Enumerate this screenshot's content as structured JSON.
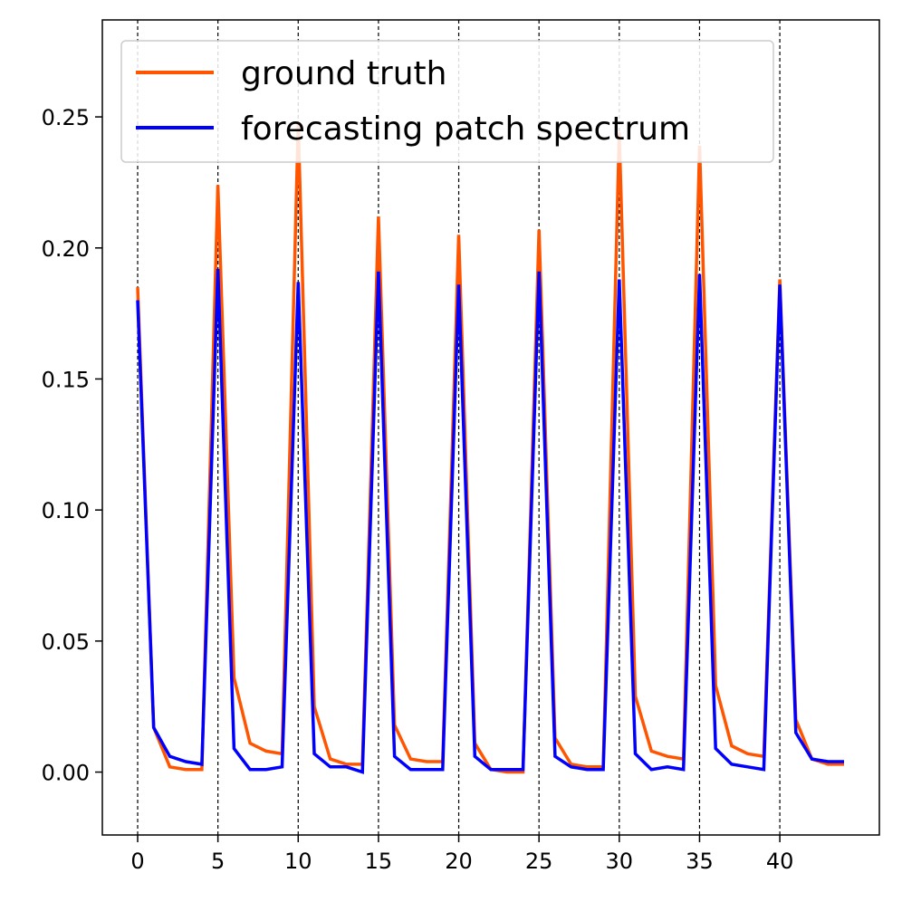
{
  "chart_data": {
    "type": "line",
    "title": "",
    "xlabel": "",
    "ylabel": "",
    "xlim": [
      -2.2,
      46.2
    ],
    "ylim": [
      -0.024,
      0.287
    ],
    "x_ticks": [
      0,
      5,
      10,
      15,
      20,
      25,
      30,
      35,
      40
    ],
    "x_tick_labels": [
      "0",
      "5",
      "10",
      "15",
      "20",
      "25",
      "30",
      "35",
      "40"
    ],
    "y_ticks": [
      0.0,
      0.05,
      0.1,
      0.15,
      0.2,
      0.25
    ],
    "y_tick_labels": [
      "0.00",
      "0.05",
      "0.10",
      "0.15",
      "0.20",
      "0.25"
    ],
    "vlines": [
      0,
      5,
      10,
      15,
      20,
      25,
      30,
      35,
      40
    ],
    "grid": false,
    "legend_position": "top-left",
    "x": [
      0,
      1,
      2,
      3,
      4,
      5,
      6,
      7,
      8,
      9,
      10,
      11,
      12,
      13,
      14,
      15,
      16,
      17,
      18,
      19,
      20,
      21,
      22,
      23,
      24,
      25,
      26,
      27,
      28,
      29,
      30,
      31,
      32,
      33,
      34,
      35,
      36,
      37,
      38,
      39,
      40,
      41,
      42,
      43,
      44
    ],
    "series": [
      {
        "name": "ground truth",
        "color": "#ff5500",
        "values": [
          0.185,
          0.017,
          0.002,
          0.001,
          0.001,
          0.224,
          0.036,
          0.011,
          0.008,
          0.007,
          0.248,
          0.025,
          0.005,
          0.003,
          0.003,
          0.212,
          0.018,
          0.005,
          0.004,
          0.004,
          0.205,
          0.011,
          0.001,
          0.0,
          0.0,
          0.207,
          0.013,
          0.003,
          0.002,
          0.002,
          0.244,
          0.029,
          0.008,
          0.006,
          0.005,
          0.239,
          0.033,
          0.01,
          0.007,
          0.006,
          0.188,
          0.02,
          0.005,
          0.003,
          0.003
        ]
      },
      {
        "name": "forecasting patch spectrum",
        "color": "#0000ff",
        "values": [
          0.18,
          0.017,
          0.006,
          0.004,
          0.003,
          0.192,
          0.009,
          0.001,
          0.001,
          0.002,
          0.187,
          0.007,
          0.002,
          0.002,
          0.0,
          0.191,
          0.006,
          0.001,
          0.001,
          0.001,
          0.186,
          0.006,
          0.001,
          0.001,
          0.001,
          0.191,
          0.006,
          0.002,
          0.001,
          0.001,
          0.188,
          0.007,
          0.001,
          0.002,
          0.001,
          0.19,
          0.009,
          0.003,
          0.002,
          0.001,
          0.186,
          0.015,
          0.005,
          0.004,
          0.004
        ]
      }
    ]
  }
}
